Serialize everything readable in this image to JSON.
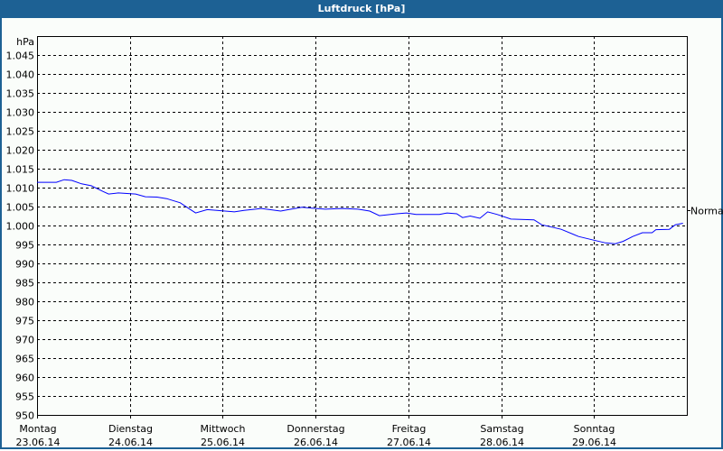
{
  "window": {
    "title": "Luftdruck [hPa]",
    "title_bar_color": "#1d6194"
  },
  "chart_data": {
    "type": "line",
    "title": "Luftdruck [hPa]",
    "ylabel": "hPa",
    "ylim": [
      950,
      1050
    ],
    "yticks": [
      950,
      955,
      960,
      965,
      970,
      975,
      980,
      985,
      990,
      995,
      1000,
      1005,
      1010,
      1015,
      1020,
      1025,
      1030,
      1035,
      1040,
      1045
    ],
    "ytick_labels": [
      "950",
      "955",
      "960",
      "965",
      "970",
      "975",
      "980",
      "985",
      "990",
      "995",
      "1.000",
      "1.005",
      "1.010",
      "1.015",
      "1.020",
      "1.025",
      "1.030",
      "1.035",
      "1.040",
      "1.045"
    ],
    "xlim": [
      "2014-06-23T00:00",
      "2014-06-30T00:00"
    ],
    "xticks": [
      {
        "day": "Montag",
        "date": "23.06.14"
      },
      {
        "day": "Dienstag",
        "date": "24.06.14"
      },
      {
        "day": "Mittwoch",
        "date": "25.06.14"
      },
      {
        "day": "Donnerstag",
        "date": "26.06.14"
      },
      {
        "day": "Freitag",
        "date": "27.06.14"
      },
      {
        "day": "Samstag",
        "date": "28.06.14"
      },
      {
        "day": "Sonntag",
        "date": "29.06.14"
      }
    ],
    "grid": true,
    "reference": {
      "label": "Normal",
      "value": 1004
    },
    "series": [
      {
        "color": "#0000ff",
        "points": [
          [
            "2014-06-23T00:00",
            1011.4
          ],
          [
            "2014-06-23T05:00",
            1011.4
          ],
          [
            "2014-06-23T07:00",
            1012.1
          ],
          [
            "2014-06-23T09:00",
            1011.9
          ],
          [
            "2014-06-23T11:30",
            1011.0
          ],
          [
            "2014-06-23T14:00",
            1010.5
          ],
          [
            "2014-06-23T17:00",
            1009.0
          ],
          [
            "2014-06-23T18:30",
            1008.3
          ],
          [
            "2014-06-23T21:00",
            1008.6
          ],
          [
            "2014-06-24T01:30",
            1008.3
          ],
          [
            "2014-06-24T04:00",
            1007.6
          ],
          [
            "2014-06-24T07:00",
            1007.5
          ],
          [
            "2014-06-24T09:30",
            1007.1
          ],
          [
            "2014-06-24T13:00",
            1006.0
          ],
          [
            "2014-06-24T15:30",
            1004.3
          ],
          [
            "2014-06-24T17:00",
            1003.3
          ],
          [
            "2014-06-24T20:00",
            1004.2
          ],
          [
            "2014-06-24T22:30",
            1004.0
          ],
          [
            "2014-06-25T03:00",
            1003.6
          ],
          [
            "2014-06-25T05:30",
            1004.0
          ],
          [
            "2014-06-25T10:00",
            1004.5
          ],
          [
            "2014-06-25T15:00",
            1003.8
          ],
          [
            "2014-06-25T17:00",
            1004.2
          ],
          [
            "2014-06-25T20:30",
            1004.8
          ],
          [
            "2014-06-25T23:00",
            1004.6
          ],
          [
            "2014-06-26T02:30",
            1004.3
          ],
          [
            "2014-06-26T07:00",
            1004.5
          ],
          [
            "2014-06-26T11:00",
            1004.3
          ],
          [
            "2014-06-26T14:00",
            1003.8
          ],
          [
            "2014-06-26T16:30",
            1002.6
          ],
          [
            "2014-06-26T21:00",
            1003.1
          ],
          [
            "2014-06-26T23:30",
            1003.3
          ],
          [
            "2014-06-27T02:00",
            1002.9
          ],
          [
            "2014-06-27T08:00",
            1002.9
          ],
          [
            "2014-06-27T10:00",
            1003.3
          ],
          [
            "2014-06-27T12:30",
            1003.1
          ],
          [
            "2014-06-27T14:00",
            1002.1
          ],
          [
            "2014-06-27T16:00",
            1002.5
          ],
          [
            "2014-06-27T18:30",
            1001.9
          ],
          [
            "2014-06-27T20:30",
            1003.6
          ],
          [
            "2014-06-27T23:00",
            1002.9
          ],
          [
            "2014-06-28T02:30",
            1001.7
          ],
          [
            "2014-06-28T08:30",
            1001.5
          ],
          [
            "2014-06-28T10:30",
            1000.2
          ],
          [
            "2014-06-28T15:30",
            999.0
          ],
          [
            "2014-06-28T20:00",
            997.1
          ],
          [
            "2014-06-29T00:30",
            996.0
          ],
          [
            "2014-06-29T03:00",
            995.4
          ],
          [
            "2014-06-29T05:30",
            995.2
          ],
          [
            "2014-06-29T07:30",
            995.8
          ],
          [
            "2014-06-29T10:00",
            997.1
          ],
          [
            "2014-06-29T12:30",
            998.1
          ],
          [
            "2014-06-29T15:00",
            998.1
          ],
          [
            "2014-06-29T16:00",
            998.9
          ],
          [
            "2014-06-29T19:30",
            999.0
          ],
          [
            "2014-06-29T21:00",
            1000.2
          ],
          [
            "2014-06-29T23:00",
            1000.6
          ]
        ]
      }
    ]
  }
}
